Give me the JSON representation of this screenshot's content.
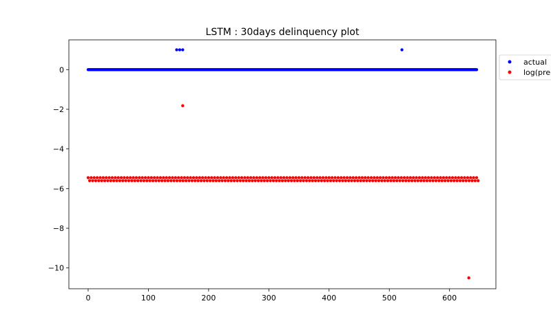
{
  "chart_data": {
    "type": "scatter",
    "title": "LSTM : 30days delinquency plot",
    "xlabel": "",
    "ylabel": "",
    "xlim": [
      -32,
      677
    ],
    "ylim": [
      -11.05,
      1.5
    ],
    "xticks": [
      0,
      100,
      200,
      300,
      400,
      500,
      600
    ],
    "yticks": [
      0,
      -2,
      -4,
      -6,
      -8,
      -10
    ],
    "grid": false,
    "legend_placement": "right-outside-top",
    "series": [
      {
        "name": "actual",
        "color": "#0000ff",
        "marker": "dot",
        "baseline_value": 0,
        "baseline_x_range": [
          0,
          645
        ],
        "baseline_x_step": 1,
        "outliers": [
          {
            "x": 147,
            "y": 1
          },
          {
            "x": 152,
            "y": 1
          },
          {
            "x": 157,
            "y": 1
          },
          {
            "x": 521,
            "y": 1
          }
        ]
      },
      {
        "name": "log(pre",
        "color": "#ff0000",
        "marker": "dot",
        "upper_band_value": -5.45,
        "lower_band_value": -5.6,
        "band_x_range": [
          0,
          645
        ],
        "band_x_step": 5,
        "outliers": [
          {
            "x": 157,
            "y": -1.82
          },
          {
            "x": 632,
            "y": -10.5
          }
        ]
      }
    ]
  }
}
